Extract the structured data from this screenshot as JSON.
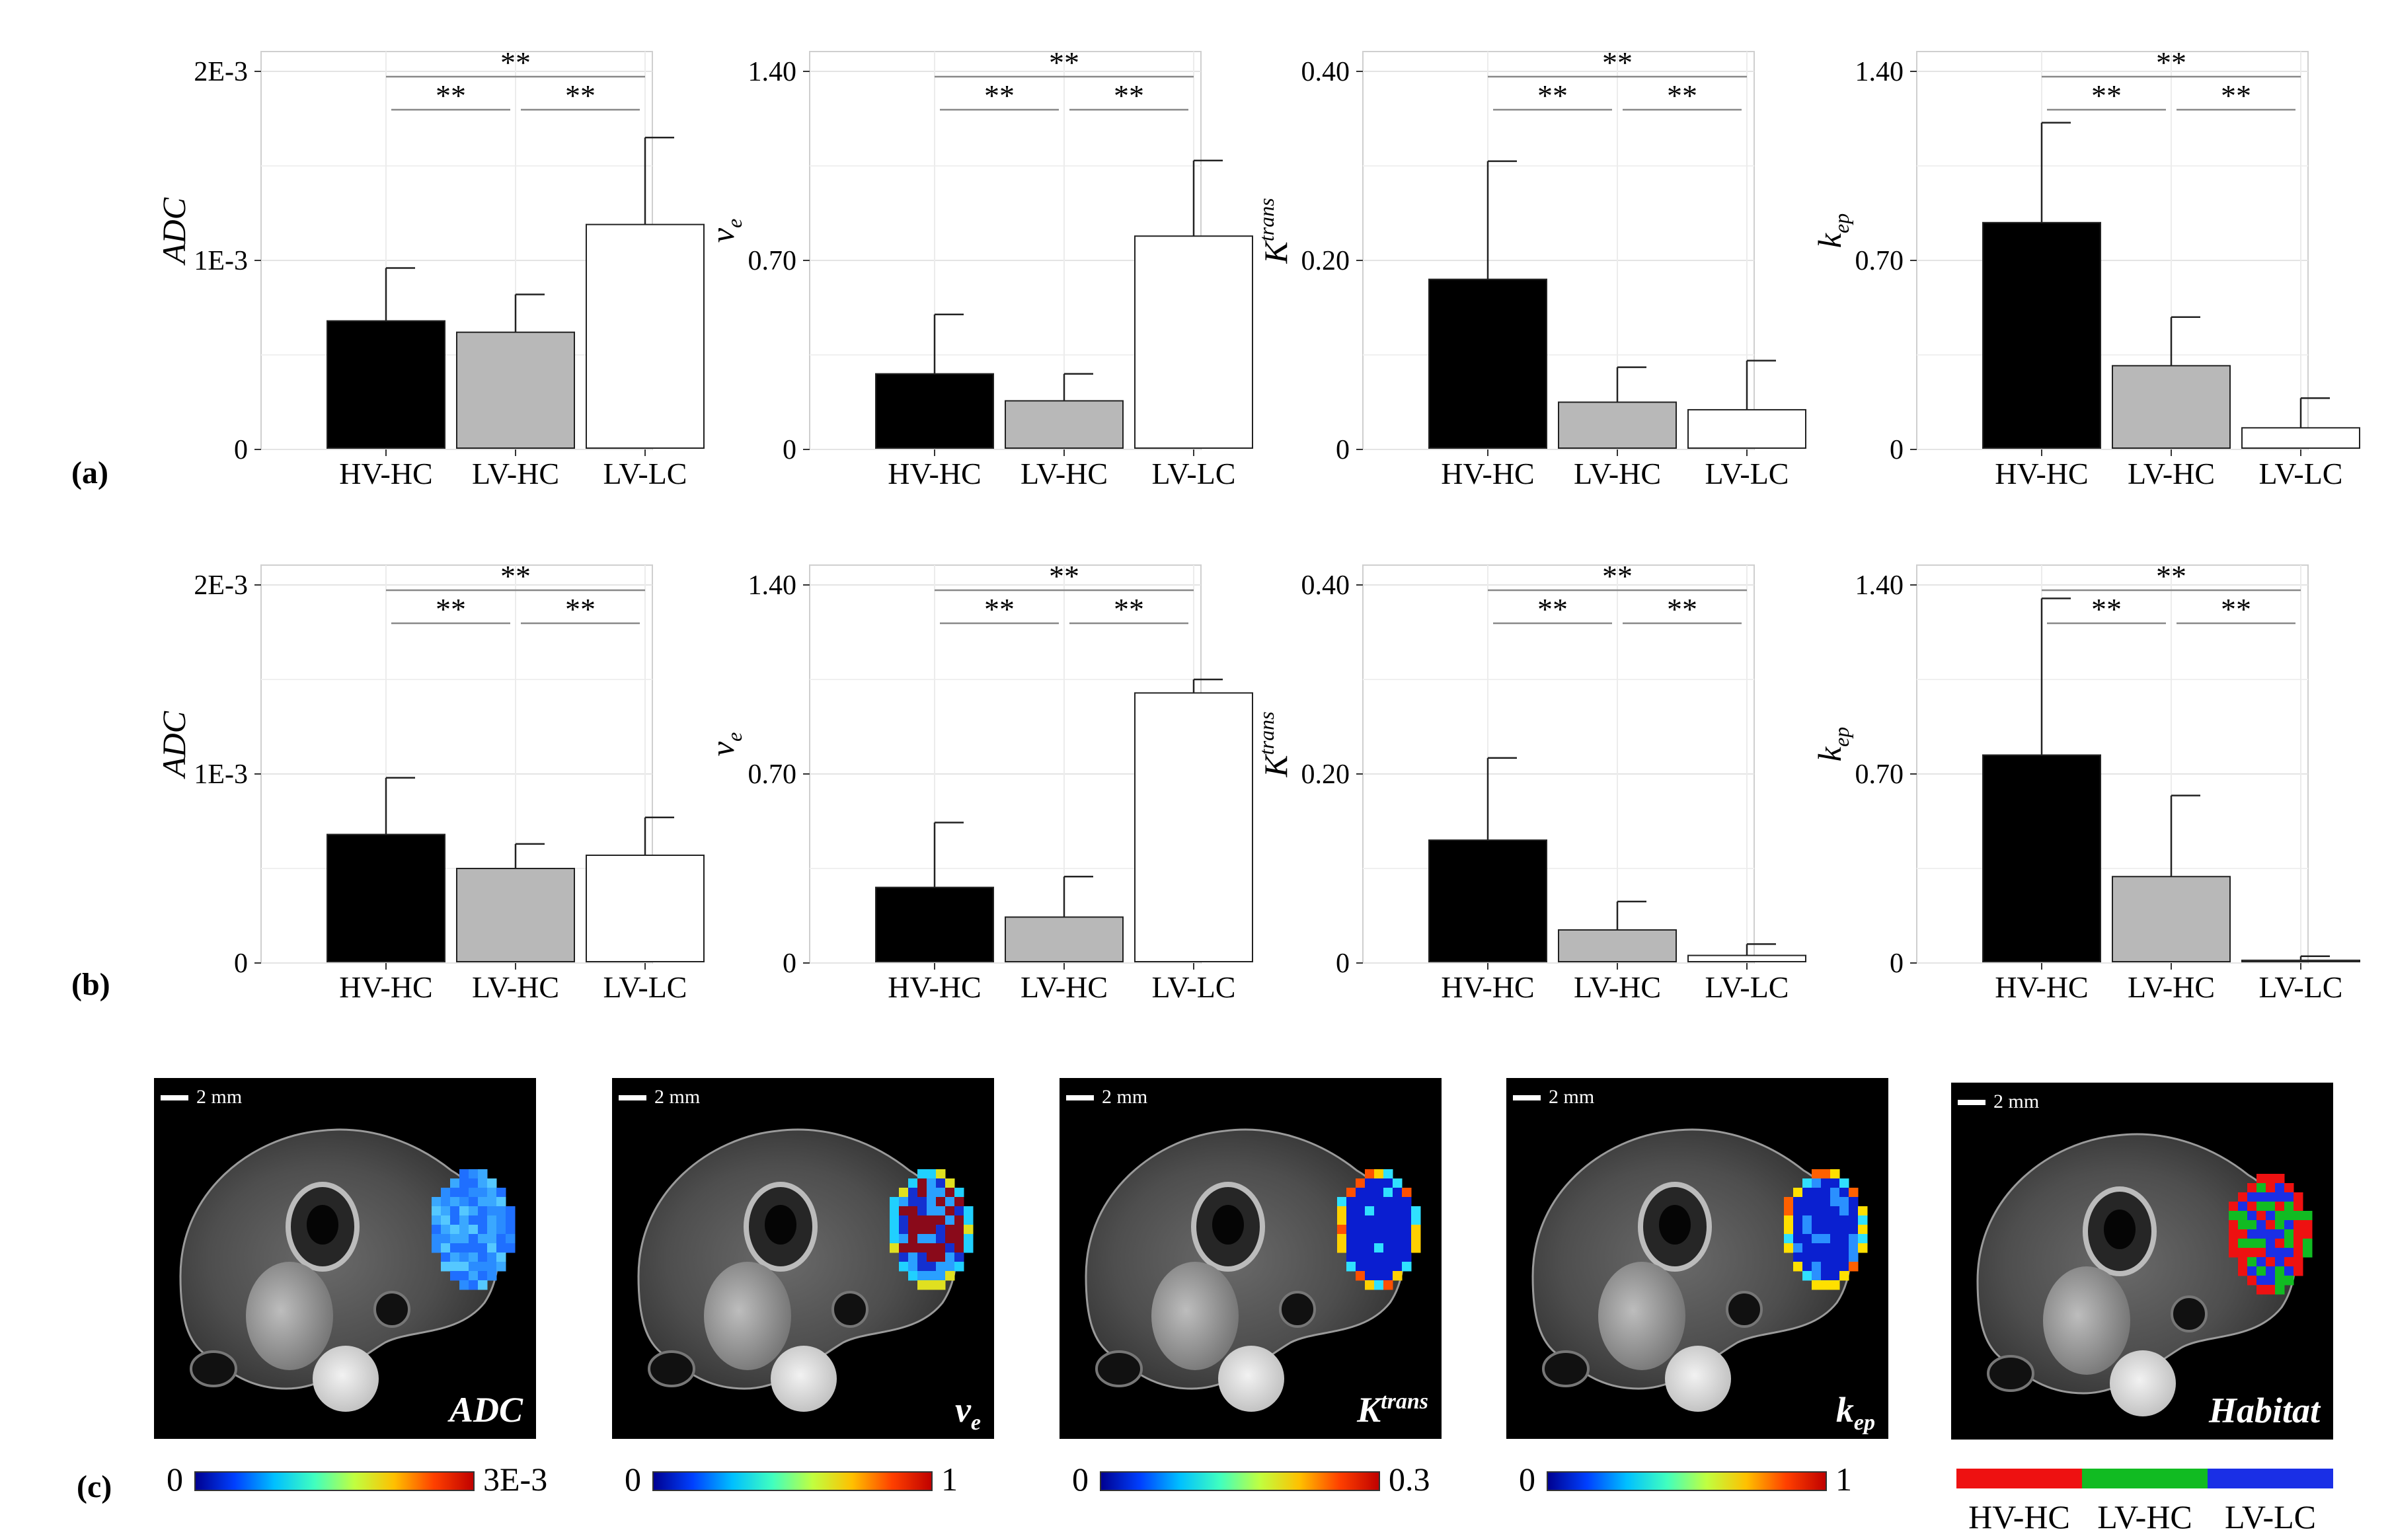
{
  "figure": {
    "panel_labels": [
      "(a)",
      "(b)",
      "(c)"
    ]
  },
  "chart_data": [
    {
      "id": "a-adc",
      "type": "bar",
      "panel": "(a)",
      "ylabel": "ADC",
      "ylim": [
        0,
        0.002
      ],
      "yticks": [
        0,
        0.001,
        0.002
      ],
      "ytick_labels": [
        "0",
        "1E-3",
        "2E-3"
      ],
      "categories": [
        "HV-HC",
        "LV-HC",
        "LV-LC"
      ],
      "values": [
        0.00068,
        0.00062,
        0.00119
      ],
      "errors": [
        0.00028,
        0.0002,
        0.00046
      ],
      "colors": [
        "#000000",
        "#b8b8b8",
        "#ffffff"
      ],
      "significance": [
        {
          "from": 0,
          "to": 2,
          "label": "**"
        },
        {
          "from": 0,
          "to": 1,
          "label": "**"
        },
        {
          "from": 1,
          "to": 2,
          "label": "**"
        }
      ]
    },
    {
      "id": "a-ve",
      "type": "bar",
      "panel": "(a)",
      "ylabel": "ve",
      "ylabel_main": "v",
      "ylabel_sub": "e",
      "ylim": [
        0,
        1.4
      ],
      "yticks": [
        0,
        0.7,
        1.4
      ],
      "ytick_labels": [
        "0",
        "0.70",
        "1.40"
      ],
      "categories": [
        "HV-HC",
        "LV-HC",
        "LV-LC"
      ],
      "values": [
        0.28,
        0.18,
        0.79
      ],
      "errors": [
        0.22,
        0.1,
        0.28
      ],
      "colors": [
        "#000000",
        "#b8b8b8",
        "#ffffff"
      ],
      "significance": [
        {
          "from": 0,
          "to": 2,
          "label": "**"
        },
        {
          "from": 0,
          "to": 1,
          "label": "**"
        },
        {
          "from": 1,
          "to": 2,
          "label": "**"
        }
      ]
    },
    {
      "id": "a-ktrans",
      "type": "bar",
      "panel": "(a)",
      "ylabel": "Ktrans",
      "ylabel_main": "K",
      "ylabel_sup": "trans",
      "ylim": [
        0,
        0.4
      ],
      "yticks": [
        0,
        0.2,
        0.4
      ],
      "ytick_labels": [
        "0",
        "0.20",
        "0.40"
      ],
      "categories": [
        "HV-HC",
        "LV-HC",
        "LV-LC"
      ],
      "values": [
        0.18,
        0.05,
        0.042
      ],
      "errors": [
        0.125,
        0.037,
        0.052
      ],
      "colors": [
        "#000000",
        "#b8b8b8",
        "#ffffff"
      ],
      "significance": [
        {
          "from": 0,
          "to": 2,
          "label": "**"
        },
        {
          "from": 0,
          "to": 1,
          "label": "**"
        },
        {
          "from": 1,
          "to": 2,
          "label": "**"
        }
      ]
    },
    {
      "id": "a-kep",
      "type": "bar",
      "panel": "(a)",
      "ylabel": "kep",
      "ylabel_main": "k",
      "ylabel_sub": "ep",
      "ylim": [
        0,
        1.4
      ],
      "yticks": [
        0,
        0.7,
        1.4
      ],
      "ytick_labels": [
        "0",
        "0.70",
        "1.40"
      ],
      "categories": [
        "HV-HC",
        "LV-HC",
        "LV-LC"
      ],
      "values": [
        0.84,
        0.31,
        0.08
      ],
      "errors": [
        0.37,
        0.18,
        0.11
      ],
      "colors": [
        "#000000",
        "#b8b8b8",
        "#ffffff"
      ],
      "significance": [
        {
          "from": 0,
          "to": 2,
          "label": "**"
        },
        {
          "from": 0,
          "to": 1,
          "label": "**"
        },
        {
          "from": 1,
          "to": 2,
          "label": "**"
        }
      ]
    },
    {
      "id": "b-adc",
      "type": "bar",
      "panel": "(b)",
      "ylabel": "ADC",
      "ylim": [
        0,
        0.002
      ],
      "yticks": [
        0,
        0.001,
        0.002
      ],
      "ytick_labels": [
        "0",
        "1E-3",
        "2E-3"
      ],
      "categories": [
        "HV-HC",
        "LV-HC",
        "LV-LC"
      ],
      "values": [
        0.00068,
        0.0005,
        0.00057
      ],
      "errors": [
        0.0003,
        0.00013,
        0.0002
      ],
      "colors": [
        "#000000",
        "#b8b8b8",
        "#ffffff"
      ],
      "significance": [
        {
          "from": 0,
          "to": 2,
          "label": "**"
        },
        {
          "from": 0,
          "to": 1,
          "label": "**"
        },
        {
          "from": 1,
          "to": 2,
          "label": "**"
        }
      ]
    },
    {
      "id": "b-ve",
      "type": "bar",
      "panel": "(b)",
      "ylabel": "ve",
      "ylabel_main": "v",
      "ylabel_sub": "e",
      "ylim": [
        0,
        1.4
      ],
      "yticks": [
        0,
        0.7,
        1.4
      ],
      "ytick_labels": [
        "0",
        "0.70",
        "1.40"
      ],
      "categories": [
        "HV-HC",
        "LV-HC",
        "LV-LC"
      ],
      "values": [
        0.28,
        0.17,
        1.0
      ],
      "errors": [
        0.24,
        0.15,
        0.05
      ],
      "colors": [
        "#000000",
        "#b8b8b8",
        "#ffffff"
      ],
      "significance": [
        {
          "from": 0,
          "to": 2,
          "label": "**"
        },
        {
          "from": 0,
          "to": 1,
          "label": "**"
        },
        {
          "from": 1,
          "to": 2,
          "label": "**"
        }
      ]
    },
    {
      "id": "b-ktrans",
      "type": "bar",
      "panel": "(b)",
      "ylabel": "Ktrans",
      "ylabel_main": "K",
      "ylabel_sup": "trans",
      "ylim": [
        0,
        0.4
      ],
      "yticks": [
        0,
        0.2,
        0.4
      ],
      "ytick_labels": [
        "0",
        "0.20",
        "0.40"
      ],
      "categories": [
        "HV-HC",
        "LV-HC",
        "LV-LC"
      ],
      "values": [
        0.13,
        0.035,
        0.008
      ],
      "errors": [
        0.087,
        0.03,
        0.012
      ],
      "colors": [
        "#000000",
        "#b8b8b8",
        "#ffffff"
      ],
      "significance": [
        {
          "from": 0,
          "to": 2,
          "label": "**"
        },
        {
          "from": 0,
          "to": 1,
          "label": "**"
        },
        {
          "from": 1,
          "to": 2,
          "label": "**"
        }
      ]
    },
    {
      "id": "b-kep",
      "type": "bar",
      "panel": "(b)",
      "ylabel": "kep",
      "ylabel_main": "k",
      "ylabel_sub": "ep",
      "ylim": [
        0,
        1.4
      ],
      "yticks": [
        0,
        0.7,
        1.4
      ],
      "ytick_labels": [
        "0",
        "0.70",
        "1.40"
      ],
      "categories": [
        "HV-HC",
        "LV-HC",
        "LV-LC"
      ],
      "values": [
        0.77,
        0.32,
        0.01
      ],
      "errors": [
        0.58,
        0.3,
        0.015
      ],
      "colors": [
        "#000000",
        "#b8b8b8",
        "#ffffff"
      ],
      "significance": [
        {
          "from": 0,
          "to": 2,
          "label": "**"
        },
        {
          "from": 0,
          "to": 1,
          "label": "**"
        },
        {
          "from": 1,
          "to": 2,
          "label": "**"
        }
      ]
    }
  ],
  "maps": {
    "scale_bar_label": "2 mm",
    "panels": [
      {
        "id": "adc",
        "label_main": "ADC",
        "label_sup": "",
        "label_sub": "",
        "cb_min": "0",
        "cb_max": "3E-3",
        "overlay": "adc"
      },
      {
        "id": "ve",
        "label_main": "v",
        "label_sup": "",
        "label_sub": "e",
        "cb_min": "0",
        "cb_max": "1",
        "overlay": "ve"
      },
      {
        "id": "ktrans",
        "label_main": "K",
        "label_sup": "trans",
        "label_sub": "",
        "cb_min": "0",
        "cb_max": "0.3",
        "overlay": "ktrans"
      },
      {
        "id": "kep",
        "label_main": "k",
        "label_sup": "",
        "label_sub": "ep",
        "cb_min": "0",
        "cb_max": "1",
        "overlay": "kep"
      },
      {
        "id": "habitat",
        "label_main": "Habitat",
        "label_sup": "",
        "label_sub": "",
        "overlay": "habitat"
      }
    ],
    "habitat_legend": [
      {
        "label": "HV-HC",
        "color": "#ee1111"
      },
      {
        "label": "LV-HC",
        "color": "#11bb22"
      },
      {
        "label": "LV-LC",
        "color": "#1a2fe6"
      }
    ],
    "colormap_stops": [
      "#00008f",
      "#0040ff",
      "#00c0ff",
      "#40ffbf",
      "#c0ff40",
      "#ffc000",
      "#ff4000",
      "#bf0000"
    ]
  }
}
